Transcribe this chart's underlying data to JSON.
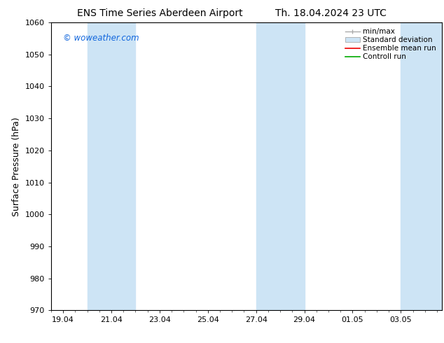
{
  "title_left": "ENS Time Series Aberdeen Airport",
  "title_right": "Th. 18.04.2024 23 UTC",
  "ylabel": "Surface Pressure (hPa)",
  "ylim": [
    970,
    1060
  ],
  "yticks": [
    970,
    980,
    990,
    1000,
    1010,
    1020,
    1030,
    1040,
    1050,
    1060
  ],
  "xtick_labels": [
    "19.04",
    "21.04",
    "23.04",
    "25.04",
    "27.04",
    "29.04",
    "01.05",
    "03.05"
  ],
  "xtick_positions": [
    0,
    2,
    4,
    6,
    8,
    10,
    12,
    14
  ],
  "xlim": [
    -0.3,
    15.7
  ],
  "watermark": "© woweather.com",
  "shaded_bands": [
    {
      "x_start": 1.0,
      "x_end": 3.0
    },
    {
      "x_start": 8.0,
      "x_end": 10.0
    },
    {
      "x_start": 14.0,
      "x_end": 15.7
    }
  ],
  "shade_color": "#cde4f5",
  "shade_alpha": 1.0,
  "legend_labels": [
    "min/max",
    "Standard deviation",
    "Ensemble mean run",
    "Controll run"
  ],
  "background_color": "#ffffff",
  "title_fontsize": 10,
  "axis_label_fontsize": 9,
  "tick_fontsize": 8,
  "watermark_color": "#1166dd",
  "legend_fontsize": 7.5
}
